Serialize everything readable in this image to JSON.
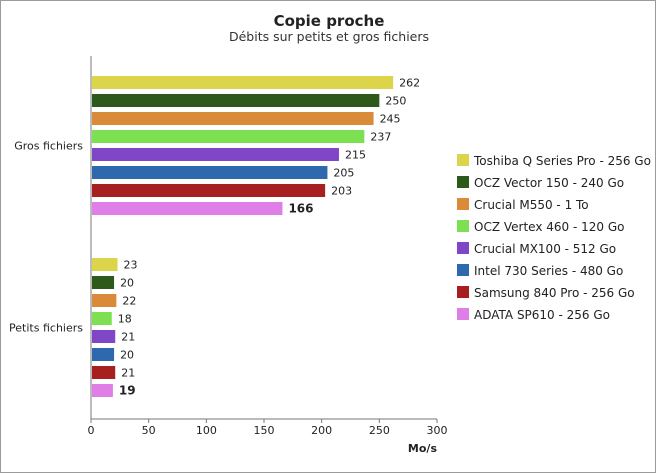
{
  "chart_data": {
    "type": "bar",
    "orientation": "horizontal",
    "title": "Copie proche",
    "subtitle": "Débits sur petits et gros fichiers",
    "xlabel": "Mo/s",
    "xlim": [
      0,
      300
    ],
    "xticks": [
      0,
      50,
      100,
      150,
      200,
      250,
      300
    ],
    "categories": [
      "Gros fichiers",
      "Petits fichiers"
    ],
    "legend_position": "right",
    "grid": false,
    "highlighted_series": "ADATA SP610 - 256 Go",
    "series": [
      {
        "name": "Toshiba Q Series Pro - 256 Go",
        "color": "#dcd44a",
        "values": [
          262,
          23
        ]
      },
      {
        "name": "OCZ Vector 150 - 240 Go",
        "color": "#2d5a1a",
        "values": [
          250,
          20
        ]
      },
      {
        "name": "Crucial M550 - 1 To",
        "color": "#d98b3a",
        "values": [
          245,
          22
        ]
      },
      {
        "name": "OCZ Vertex 460 - 120 Go",
        "color": "#7ddf52",
        "values": [
          237,
          18
        ]
      },
      {
        "name": "Crucial MX100 - 512 Go",
        "color": "#7f47c6",
        "values": [
          215,
          21
        ]
      },
      {
        "name": "Intel 730 Series - 480 Go",
        "color": "#2e69ad",
        "values": [
          205,
          20
        ]
      },
      {
        "name": "Samsung 840 Pro - 256 Go",
        "color": "#a81f1f",
        "values": [
          203,
          21
        ]
      },
      {
        "name": "ADATA SP610 - 256 Go",
        "color": "#e07ee8",
        "values": [
          166,
          19
        ]
      }
    ]
  }
}
